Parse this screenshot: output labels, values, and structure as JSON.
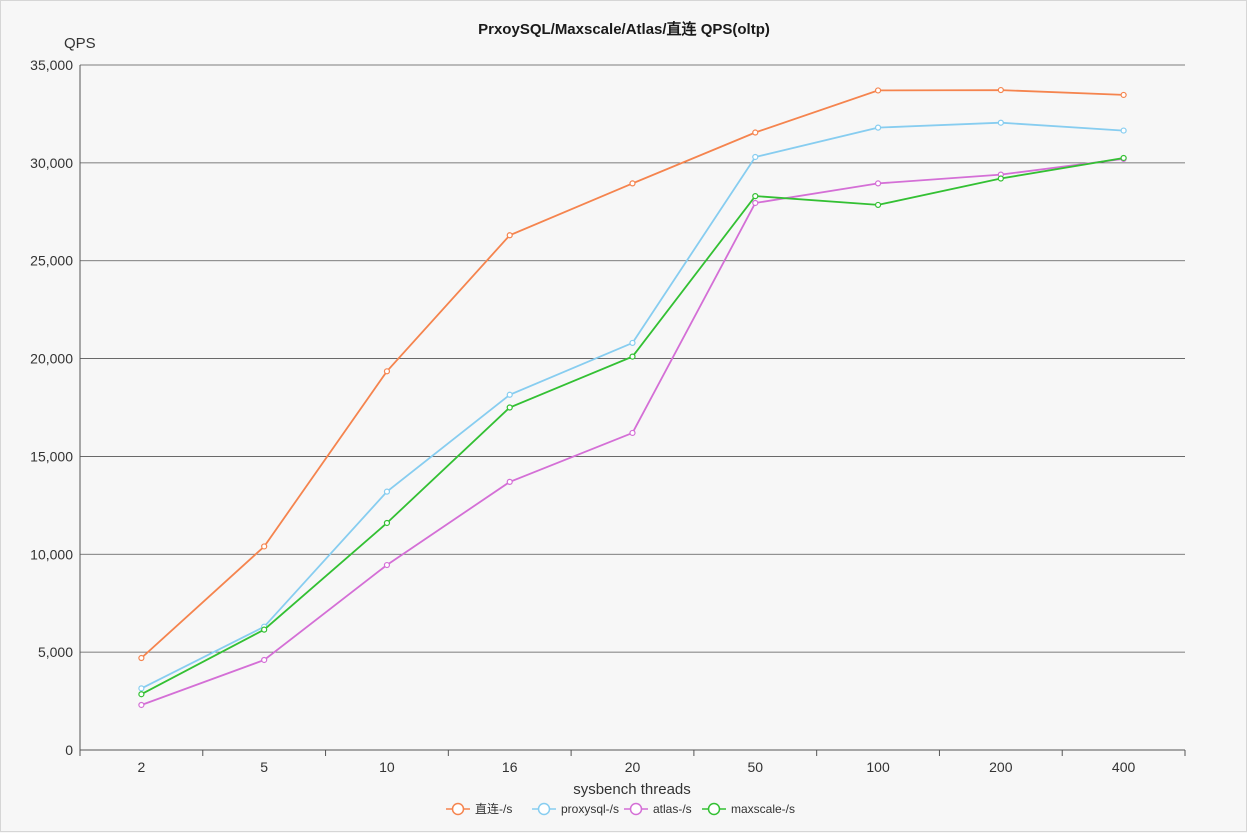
{
  "chart_data": {
    "type": "line",
    "title": "PrxoySQL/Maxscale/Atlas/直连 QPS(oltp)",
    "xlabel": "sysbench threads",
    "ylabel": "QPS",
    "categories": [
      "2",
      "5",
      "10",
      "16",
      "20",
      "50",
      "100",
      "200",
      "400"
    ],
    "ylim": [
      0,
      35000
    ],
    "yticks": [
      0,
      5000,
      10000,
      15000,
      20000,
      25000,
      30000,
      35000
    ],
    "ytick_labels": [
      "0",
      "5,000",
      "10,000",
      "15,000",
      "20,000",
      "25,000",
      "30,000",
      "35,000"
    ],
    "grid": "horizontal",
    "legend_position": "bottom",
    "series": [
      {
        "name": "直连-/s",
        "color": "#f5844e",
        "values": [
          4700,
          10400,
          19350,
          26300,
          28950,
          31550,
          33700,
          33720,
          33470
        ]
      },
      {
        "name": "proxysql-/s",
        "color": "#87cdf0",
        "values": [
          3150,
          6300,
          13200,
          18150,
          20800,
          30300,
          31800,
          32050,
          31650
        ]
      },
      {
        "name": "atlas-/s",
        "color": "#d46fd6",
        "values": [
          2300,
          4600,
          9450,
          13700,
          16200,
          27950,
          28950,
          29400,
          30200
        ]
      },
      {
        "name": "maxscale-/s",
        "color": "#33c033",
        "values": [
          2850,
          6150,
          11600,
          17500,
          20100,
          28300,
          27850,
          29200,
          30250
        ]
      }
    ]
  }
}
